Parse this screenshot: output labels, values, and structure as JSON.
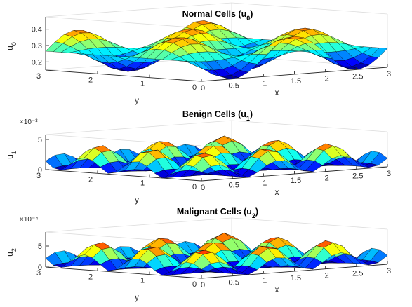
{
  "chart_data": [
    {
      "type": "surface",
      "title_main": "Normal Cells (u",
      "title_sub": "0",
      "title_end": ")",
      "zlabel_main": "u",
      "zlabel_sub": "0",
      "xlabel": "x",
      "ylabel": "y",
      "exponent_label": "",
      "x_ticks": [
        "0",
        "0.5",
        "1",
        "1.5",
        "2",
        "2.5",
        "3"
      ],
      "x_tick_values": [
        0,
        0.5,
        1,
        1.5,
        2,
        2.5,
        3
      ],
      "y_ticks": [
        "0",
        "1",
        "2",
        "3"
      ],
      "y_tick_values": [
        0,
        1,
        2,
        3
      ],
      "z_ticks": [
        "0.2",
        "0.3",
        "0.4"
      ],
      "z_tick_values": [
        0.2,
        0.3,
        0.4
      ],
      "xlim": [
        0,
        3
      ],
      "ylim": [
        0,
        3
      ],
      "zlim": [
        0.15,
        0.45
      ],
      "grid_points": 21,
      "surface": {
        "offset": 0.2655,
        "amplitude": 0.1162,
        "x_wavenumber": 3.14159,
        "y_wavenumber": 3.14159,
        "phase_x": 1.5708,
        "phase_y": 0
      },
      "colormap": "jet"
    },
    {
      "type": "surface",
      "title_main": "Benign Cells (u",
      "title_sub": "1",
      "title_end": ")",
      "zlabel_main": "u",
      "zlabel_sub": "1",
      "xlabel": "x",
      "ylabel": "y",
      "exponent_label": "×10⁻³",
      "x_ticks": [
        "0",
        "0.5",
        "1",
        "1.5",
        "2",
        "2.5",
        "3"
      ],
      "x_tick_values": [
        0,
        0.5,
        1,
        1.5,
        2,
        2.5,
        3
      ],
      "y_ticks": [
        "0",
        "1",
        "2",
        "3"
      ],
      "y_tick_values": [
        0,
        1,
        2,
        3
      ],
      "z_ticks": [
        "0",
        "5"
      ],
      "z_tick_values": [
        0,
        5
      ],
      "xlim": [
        0,
        3
      ],
      "ylim": [
        0,
        3
      ],
      "zlim": [
        0,
        5
      ],
      "grid_points": 21,
      "surface": {
        "peak": 4.3,
        "x_wavenumber": 6.28318,
        "y_wavenumber": 6.28318,
        "phase_x": 1.5708,
        "phase_y": 1.5708,
        "sharpness": 1.6
      },
      "colormap": "jet"
    },
    {
      "type": "surface",
      "title_main": "Malignant Cells (u",
      "title_sub": "2",
      "title_end": ")",
      "zlabel_main": "u",
      "zlabel_sub": "2",
      "xlabel": "x",
      "ylabel": "y",
      "exponent_label": "×10⁻⁴",
      "x_ticks": [
        "0",
        "0.5",
        "1",
        "1.5",
        "2",
        "2.5",
        "3"
      ],
      "x_tick_values": [
        0,
        0.5,
        1,
        1.5,
        2,
        2.5,
        3
      ],
      "y_ticks": [
        "0",
        "1",
        "2",
        "3"
      ],
      "y_tick_values": [
        0,
        1,
        2,
        3
      ],
      "z_ticks": [
        "0",
        "5"
      ],
      "z_tick_values": [
        0,
        5
      ],
      "xlim": [
        0,
        3
      ],
      "ylim": [
        0,
        3
      ],
      "zlim": [
        0,
        7
      ],
      "grid_points": 21,
      "surface": {
        "peak": 6.3,
        "x_wavenumber": 6.28318,
        "y_wavenumber": 6.28318,
        "phase_x": 1.5708,
        "phase_y": 1.5708,
        "sharpness": 1.6
      },
      "colormap": "jet"
    }
  ]
}
